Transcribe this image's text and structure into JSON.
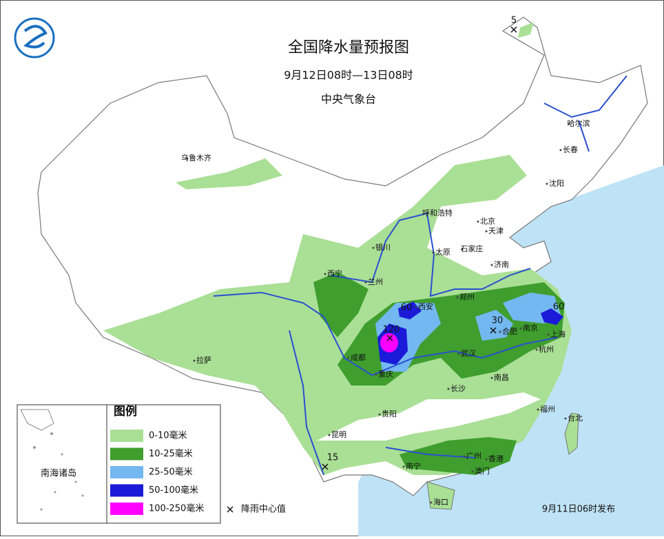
{
  "header": {
    "title": "全国降水量预报图",
    "period": "9月12日08时—13日08时",
    "issuer": "中央气象台"
  },
  "cities": [
    "乌鲁木齐",
    "哈尔滨",
    "长春",
    "沈阳",
    "呼和浩特",
    "北京",
    "天津",
    "银川",
    "太原",
    "石家庄",
    "西宁",
    "兰州",
    "济南",
    "郑州",
    "西安",
    "合肥",
    "南京",
    "上海",
    "拉萨",
    "成都",
    "武汉",
    "杭州",
    "重庆",
    "长沙",
    "南昌",
    "贵阳",
    "福州",
    "台北",
    "昆明",
    "南宁",
    "广州",
    "香港",
    "澳门",
    "海口"
  ],
  "rain_centers": [
    5,
    60,
    120,
    30,
    60,
    15
  ],
  "legend": {
    "title": "图例",
    "items": [
      "0-10毫米",
      "10-25毫米",
      "25-50毫米",
      "50-100毫米",
      "100-250毫米"
    ],
    "center_marker_label": "降雨中心值"
  },
  "inset_label": "南海诸岛",
  "footer": "9月11日06时发布"
}
